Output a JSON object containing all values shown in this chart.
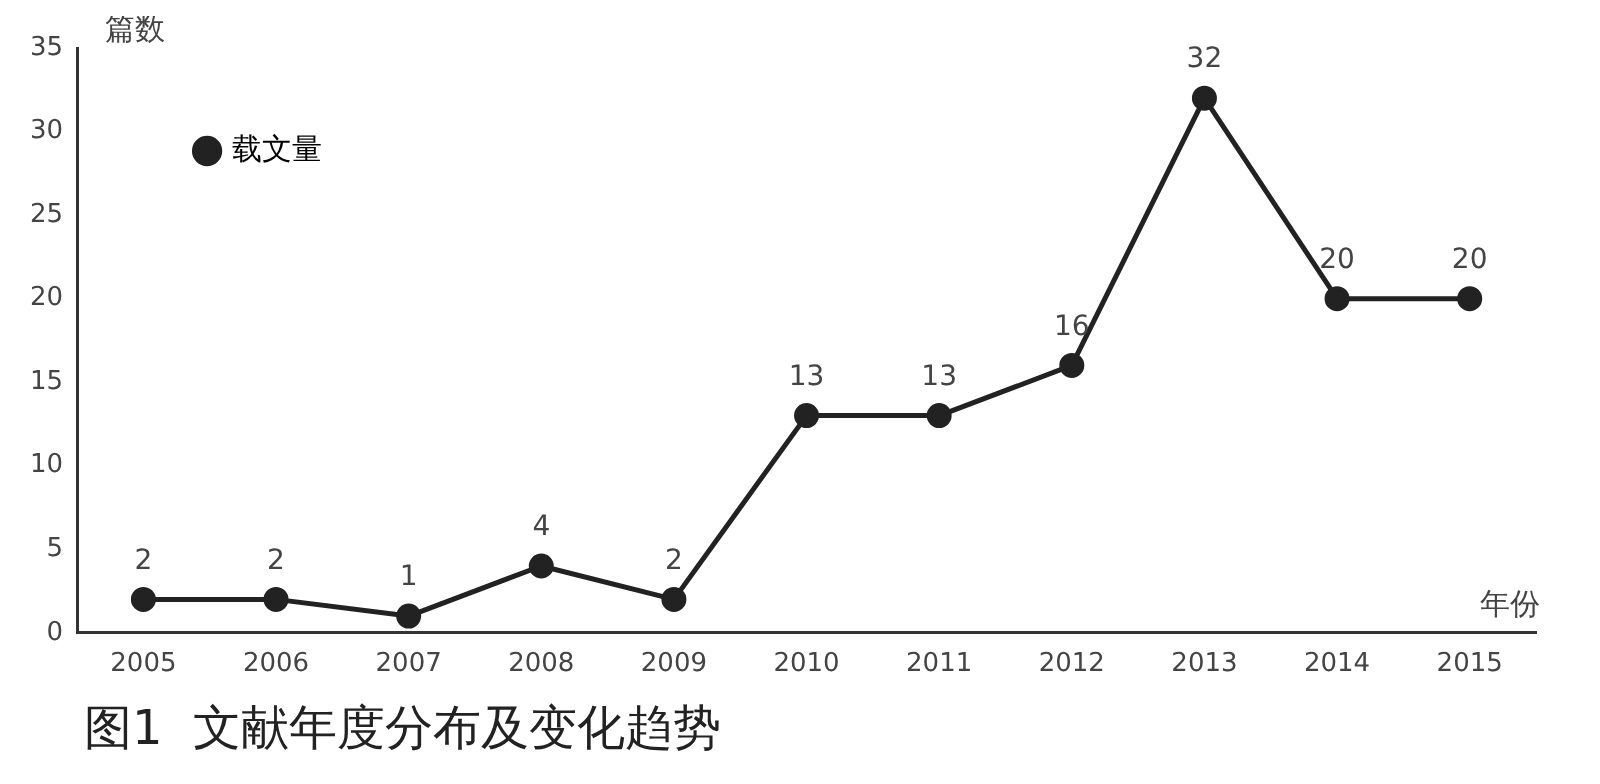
{
  "chart_data": {
    "type": "line",
    "title": "图1  文献年度分布及变化趋势",
    "xlabel": "年份",
    "ylabel": "篇数",
    "categories": [
      "2005",
      "2006",
      "2007",
      "2008",
      "2009",
      "2010",
      "2011",
      "2012",
      "2013",
      "2014",
      "2015"
    ],
    "series": [
      {
        "name": "载文量",
        "color": "#222222",
        "values": [
          2,
          2,
          1,
          4,
          2,
          13,
          13,
          16,
          32,
          20,
          20
        ]
      }
    ],
    "ylim": [
      0,
      35
    ],
    "yticks": [
      0,
      5,
      10,
      15,
      20,
      25,
      30,
      35
    ],
    "grid": false,
    "legend": "top left",
    "marker": "circle",
    "line_style": "solid",
    "data_labels": true
  }
}
